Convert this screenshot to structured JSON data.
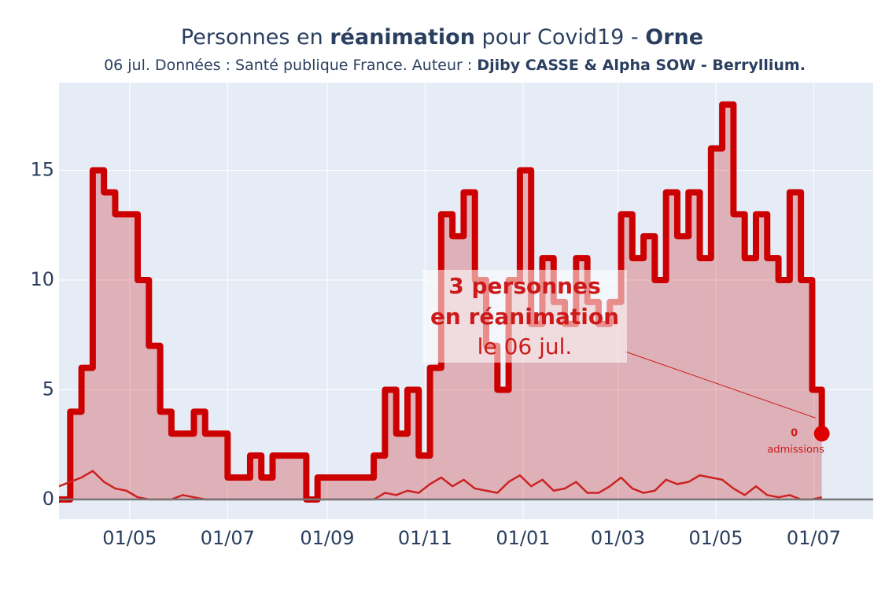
{
  "chart_data": {
    "type": "line",
    "title_parts": [
      "Personnes en ",
      "réanimation",
      " pour Covid19 - ",
      "Orne"
    ],
    "subtitle_parts": [
      "06 jul. Données : Santé publique France. Auteur : ",
      "Djiby CASSE & Alpha SOW - Berryllium."
    ],
    "x": [
      "2020-03-18",
      "2020-03-25",
      "2020-04-01",
      "2020-04-08",
      "2020-04-15",
      "2020-04-22",
      "2020-04-29",
      "2020-05-06",
      "2020-05-13",
      "2020-05-20",
      "2020-05-27",
      "2020-06-03",
      "2020-06-10",
      "2020-06-17",
      "2020-06-24",
      "2020-07-01",
      "2020-07-08",
      "2020-07-15",
      "2020-07-22",
      "2020-07-29",
      "2020-08-05",
      "2020-08-12",
      "2020-08-19",
      "2020-08-26",
      "2020-09-02",
      "2020-09-09",
      "2020-09-16",
      "2020-09-23",
      "2020-09-30",
      "2020-10-07",
      "2020-10-14",
      "2020-10-21",
      "2020-10-28",
      "2020-11-04",
      "2020-11-11",
      "2020-11-18",
      "2020-11-25",
      "2020-12-02",
      "2020-12-09",
      "2020-12-16",
      "2020-12-23",
      "2020-12-30",
      "2021-01-06",
      "2021-01-13",
      "2021-01-20",
      "2021-01-27",
      "2021-02-03",
      "2021-02-10",
      "2021-02-17",
      "2021-02-24",
      "2021-03-03",
      "2021-03-10",
      "2021-03-17",
      "2021-03-24",
      "2021-03-31",
      "2021-04-07",
      "2021-04-14",
      "2021-04-21",
      "2021-04-28",
      "2021-05-05",
      "2021-05-12",
      "2021-05-19",
      "2021-05-26",
      "2021-06-02",
      "2021-06-09",
      "2021-06-16",
      "2021-06-23",
      "2021-06-30",
      "2021-07-06"
    ],
    "series": [
      {
        "color": "#cc0000",
        "fill_color": "rgba(204,0,0,0.25)",
        "width": 8,
        "line_shape": "hv",
        "values": [
          0,
          4,
          6,
          15,
          14,
          13,
          13,
          10,
          7,
          4,
          3,
          3,
          4,
          3,
          3,
          1,
          1,
          2,
          1,
          2,
          2,
          2,
          0,
          1,
          1,
          1,
          1,
          1,
          2,
          5,
          3,
          5,
          2,
          6,
          13,
          12,
          14,
          10,
          7,
          5,
          10,
          15,
          8,
          11,
          9,
          8,
          11,
          9,
          8,
          9,
          13,
          11,
          12,
          10,
          14,
          12,
          14,
          11,
          16,
          18,
          13,
          11,
          13,
          11,
          10,
          14,
          10,
          5,
          3
        ]
      },
      {
        "color": "#cc2222",
        "width": 2.5,
        "line_shape": "linear",
        "values": [
          0.6,
          0.8,
          1.0,
          1.3,
          0.8,
          0.5,
          0.4,
          0.1,
          0,
          0,
          0,
          0.2,
          0.1,
          0,
          0,
          0,
          0,
          0,
          0,
          0,
          0,
          0,
          0,
          0,
          0,
          0,
          0,
          0,
          0,
          0.3,
          0.2,
          0.4,
          0.3,
          0.7,
          1.0,
          0.6,
          0.9,
          0.5,
          0.4,
          0.3,
          0.8,
          1.1,
          0.6,
          0.9,
          0.4,
          0.5,
          0.8,
          0.3,
          0.3,
          0.6,
          1.0,
          0.5,
          0.3,
          0.4,
          0.9,
          0.7,
          0.8,
          1.1,
          1.0,
          0.9,
          0.5,
          0.2,
          0.6,
          0.2,
          0.1,
          0.2,
          0,
          0,
          0.1
        ]
      }
    ],
    "xlim": [
      "2020-03-18",
      "2021-08-07"
    ],
    "xticks": [
      {
        "value": "2020-05-01",
        "label": "01/05"
      },
      {
        "value": "2020-07-01",
        "label": "01/07"
      },
      {
        "value": "2020-09-01",
        "label": "01/09"
      },
      {
        "value": "2020-11-01",
        "label": "01/11"
      },
      {
        "value": "2021-01-01",
        "label": "01/01"
      },
      {
        "value": "2021-03-01",
        "label": "01/03"
      },
      {
        "value": "2021-05-01",
        "label": "01/05"
      },
      {
        "value": "2021-07-01",
        "label": "01/07"
      }
    ],
    "ylim": [
      -0.9,
      19
    ],
    "yticks": [
      0,
      5,
      10,
      15
    ],
    "grid": true,
    "annotation_lines": [
      "3 personnes",
      "en réanimation",
      "le 06 jul."
    ],
    "last_admissions": 0,
    "admissions_label": "admissions"
  }
}
